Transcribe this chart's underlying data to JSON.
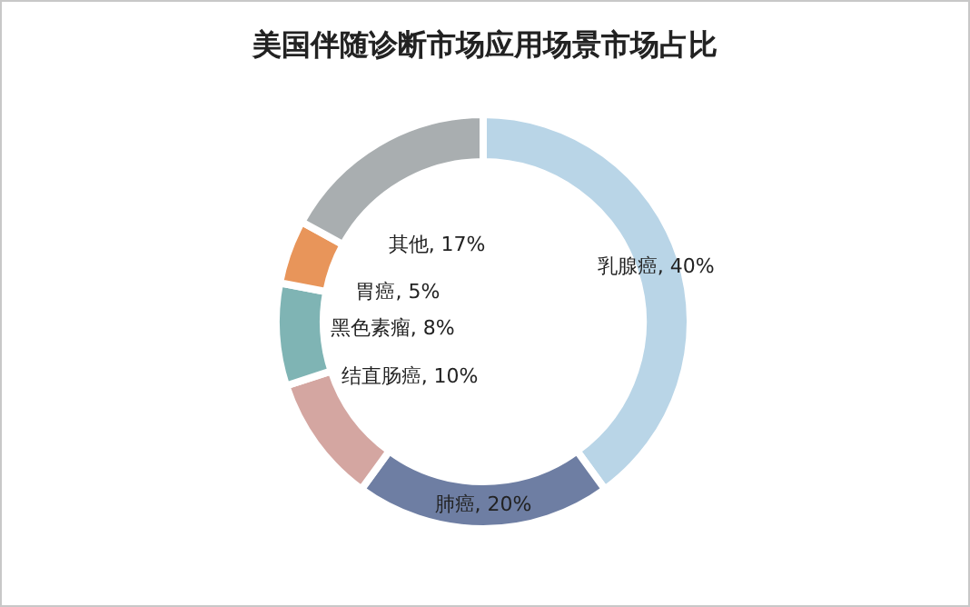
{
  "chart_data": {
    "type": "donut",
    "title": "美国伴随诊断市场应用场景市场占比",
    "categories": [
      "乳腺癌",
      "肺癌",
      "结直肠癌",
      "黑色素瘤",
      "胃癌",
      "其他"
    ],
    "values": [
      40,
      20,
      10,
      8,
      5,
      17
    ],
    "colors": [
      "#b9d5e7",
      "#6e7ea3",
      "#d4a6a1",
      "#7fb4b4",
      "#e8955a",
      "#a9aeb0"
    ],
    "value_labels": [
      ", 40%",
      ", 20%",
      ", 10%",
      ", 8%",
      ", 5%",
      ", 17%"
    ]
  }
}
